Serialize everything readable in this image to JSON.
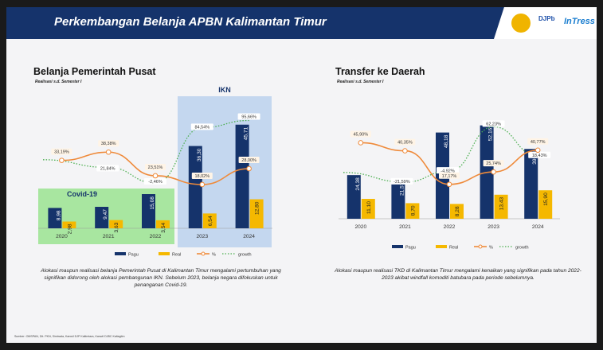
{
  "header": {
    "title": "Perkembangan Belanja APBN Kalimantan Timur",
    "logo_djpb": "DJPb",
    "logo_intress": "InTress"
  },
  "left": {
    "title": "Belanja Pemerintah Pusat",
    "subtitle": "Realisasi s.d. Semester I",
    "highlight_covid": "Covid-19",
    "highlight_ikn": "IKN",
    "description": "Alokasi maupun realisasi belanja Pemerintah Pusat di Kalimantan Timur mengalami pertumbuhan yang signifikan didorong oleh alokasi pembangunan IKN. Sebelum 2023, belanja negara difokuskan untuk penanganan Covid-19."
  },
  "right": {
    "title": "Transfer ke Daerah",
    "subtitle": "Realisasi s.d. Semester I",
    "description": "Alokasi maupun realisasi TKD di Kalimantan Timur mengalami kenaikan yang signifikan pada tahun 2022-2023 akibat windfall komoditi batubara pada periode sebelumnya."
  },
  "source": "Sumber: OMSPAN, Dit. PKN, Simtrada, Kanwil DJP Kaltimtara, Kanwil DJBC Kaltagtim",
  "colors": {
    "pagu": "#15336b",
    "real": "#f5b800",
    "pct": "#ef8a3a",
    "growth": "#4caf50",
    "covid_bg": "#a8e6a0",
    "ikn_bg": "#c4d7ef"
  },
  "chart_data": [
    {
      "type": "bar",
      "title": "Belanja Pemerintah Pusat",
      "categories": [
        "2020",
        "2021",
        "2022",
        "2023",
        "2024"
      ],
      "series": [
        {
          "name": "Pagu",
          "values": [
            8.98,
            9.47,
            15.08,
            36.3,
            45.71
          ],
          "labels": [
            "8,98",
            "9,47",
            "15,08",
            "36,30",
            "45,71"
          ]
        },
        {
          "name": "Real",
          "values": [
            2.98,
            3.63,
            3.54,
            6.54,
            12.8
          ],
          "labels": [
            "2,98",
            "3,63",
            "3,54",
            "6,54",
            "12,80"
          ]
        },
        {
          "name": "%",
          "values": [
            33.19,
            38.38,
            23.51,
            18.02,
            28.0
          ],
          "labels": [
            "33,19%",
            "38,38%",
            "23,51%",
            "18,02%",
            "28,00%"
          ]
        },
        {
          "name": "growth",
          "values": [
            null,
            21.84,
            -2.46,
            84.54,
            95.66
          ],
          "labels": [
            "",
            "21,84%",
            "-2,46%",
            "84,54%",
            "95,66%"
          ]
        }
      ],
      "legend": [
        "Pagu",
        "Real",
        "%",
        "growth"
      ],
      "legend_position": "bottom"
    },
    {
      "type": "bar",
      "title": "Transfer ke Daerah",
      "categories": [
        "2020",
        "2021",
        "2022",
        "2023",
        "2024"
      ],
      "series": [
        {
          "name": "Pagu",
          "values": [
            24.38,
            21.57,
            48.18,
            52.16,
            39.0
          ],
          "labels": [
            "24,38",
            "21,57",
            "48,18",
            "52,16",
            "39,00"
          ]
        },
        {
          "name": "Real",
          "values": [
            11.1,
            8.7,
            8.28,
            13.43,
            15.9
          ],
          "labels": [
            "11,10",
            "8,70",
            "8,28",
            "13,43",
            "15,90"
          ]
        },
        {
          "name": "%",
          "values": [
            45.9,
            40.35,
            17.17,
            25.74,
            40.77
          ],
          "labels": [
            "45,90%",
            "40,35%",
            "17,17%",
            "25,74%",
            "40,77%"
          ]
        },
        {
          "name": "growth",
          "values": [
            null,
            -21.59,
            -4.92,
            62.23,
            18.43
          ],
          "labels": [
            "",
            "-21,59%",
            "-4,92%",
            "62,23%",
            "18,43%"
          ]
        }
      ],
      "legend": [
        "Pagu",
        "Real",
        "%",
        "growth"
      ],
      "legend_position": "bottom"
    }
  ]
}
